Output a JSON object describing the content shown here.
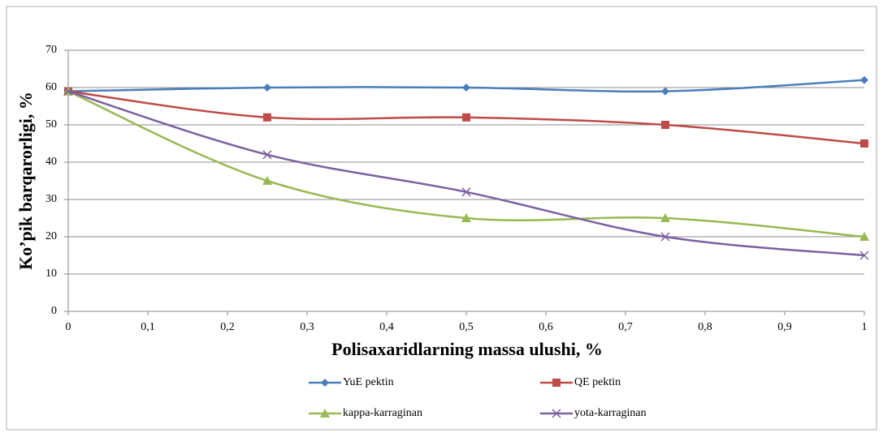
{
  "chart_data": {
    "type": "line",
    "ylabel": "Ko’pik barqarorligi, %",
    "xlabel": "Polisaxaridlarning massa ulushi, %",
    "x": [
      0,
      0.25,
      0.5,
      0.75,
      1
    ],
    "series": [
      {
        "name": "YuE pektin",
        "color": "#4a7ebb",
        "marker": "diamond",
        "values": [
          59,
          60,
          60,
          59,
          62
        ]
      },
      {
        "name": "QE pektin",
        "color": "#be4b48",
        "marker": "square",
        "values": [
          59,
          52,
          52,
          50,
          45
        ]
      },
      {
        "name": "kappa-karraginan",
        "color": "#98b954",
        "marker": "triangle",
        "values": [
          59,
          35,
          25,
          25,
          20
        ]
      },
      {
        "name": "yota-karraginan",
        "color": "#7d60a0",
        "marker": "x",
        "values": [
          59,
          42,
          32,
          20,
          15
        ]
      }
    ],
    "xlim": [
      0,
      1
    ],
    "xticks": [
      0,
      {
        "value": 0.1,
        "label": "0,1"
      },
      {
        "value": 0.2,
        "label": "0,2"
      },
      {
        "value": 0.3,
        "label": "0,3"
      },
      {
        "value": 0.4,
        "label": "0,4"
      },
      {
        "value": 0.5,
        "label": "0,5"
      },
      {
        "value": 0.6,
        "label": "0,6"
      },
      {
        "value": 0.7,
        "label": "0,7"
      },
      {
        "value": 0.8,
        "label": "0,8"
      },
      {
        "value": 0.9,
        "label": "0,9"
      },
      1
    ],
    "ylim": [
      0,
      70
    ],
    "yticks": [
      0,
      10,
      20,
      30,
      40,
      50,
      60,
      70
    ],
    "grid": true,
    "legend": "bottom",
    "smooth": true
  }
}
